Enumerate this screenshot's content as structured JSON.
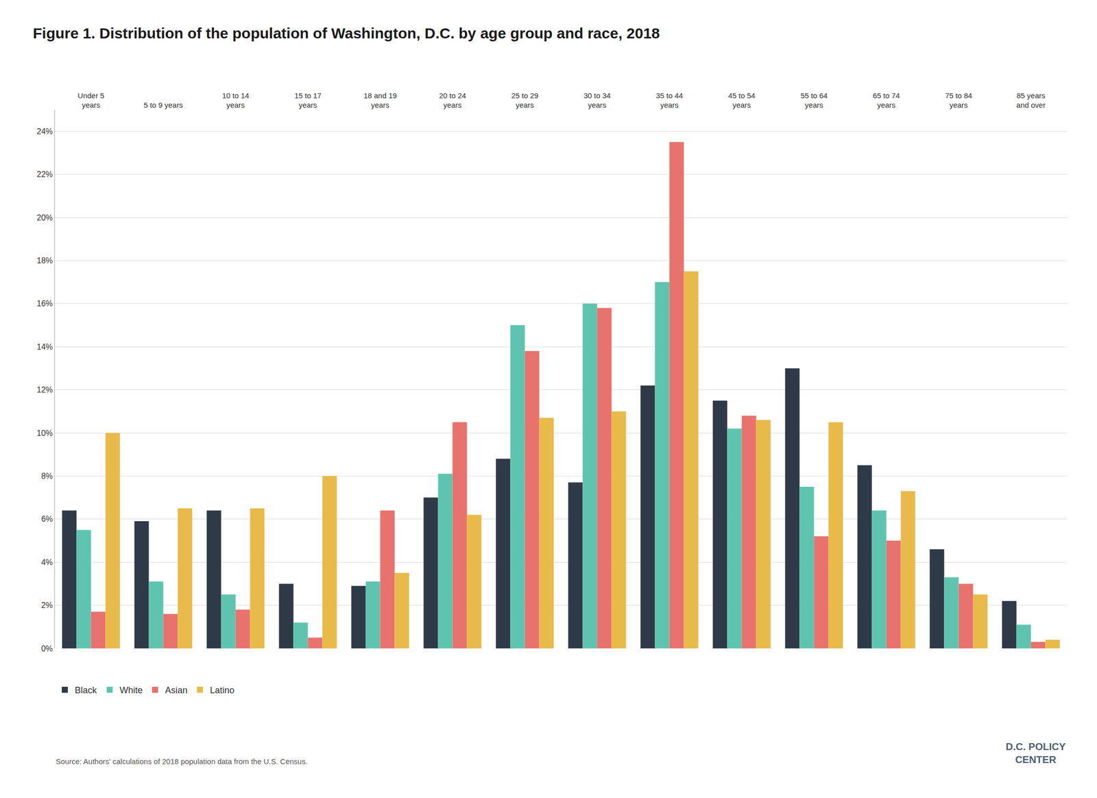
{
  "chart_data": {
    "type": "bar",
    "title": "Figure 1. Distribution of the population of Washington, D.C. by age group and race, 2018",
    "categories": [
      "Under 5\nyears",
      "5 to 9 years",
      "10 to 14\nyears",
      "15 to 17\nyears",
      "18 and 19\nyears",
      "20 to 24\nyears",
      "25 to 29\nyears",
      "30 to 34\nyears",
      "35 to 44\nyears",
      "45 to 54\nyears",
      "55 to 64\nyears",
      "65 to 74\nyears",
      "75 to 84\nyears",
      "85 years\nand over"
    ],
    "series": [
      {
        "name": "Black",
        "color": "#2e3a47",
        "values": [
          6.4,
          5.9,
          6.4,
          3.0,
          2.9,
          7.0,
          8.8,
          7.7,
          12.2,
          11.5,
          13.0,
          8.5,
          4.6,
          2.2
        ]
      },
      {
        "name": "White",
        "color": "#5ec4b0",
        "values": [
          5.5,
          3.1,
          2.5,
          1.2,
          3.1,
          8.1,
          15.0,
          16.0,
          17.0,
          10.2,
          7.5,
          6.4,
          3.3,
          1.1
        ]
      },
      {
        "name": "Asian",
        "color": "#e8726d",
        "values": [
          1.7,
          1.6,
          1.8,
          0.5,
          6.4,
          10.5,
          13.8,
          15.8,
          23.5,
          10.8,
          5.2,
          5.0,
          3.0,
          0.3
        ]
      },
      {
        "name": "Latino",
        "color": "#e8ba4a",
        "values": [
          10.0,
          6.5,
          6.5,
          8.0,
          3.5,
          6.2,
          10.7,
          11.0,
          17.5,
          10.6,
          10.5,
          7.3,
          2.5,
          0.4
        ]
      }
    ],
    "ylim": [
      0,
      25
    ],
    "yticks": [
      {
        "value": 0,
        "label": "0%"
      },
      {
        "value": 2,
        "label": "2%"
      },
      {
        "value": 4,
        "label": "4%"
      },
      {
        "value": 6,
        "label": "6%"
      },
      {
        "value": 8,
        "label": "8%"
      },
      {
        "value": 10,
        "label": "10%"
      },
      {
        "value": 12,
        "label": "12%"
      },
      {
        "value": 14,
        "label": "14%"
      },
      {
        "value": 16,
        "label": "16%"
      },
      {
        "value": 18,
        "label": "18%"
      },
      {
        "value": 20,
        "label": "20%"
      },
      {
        "value": 22,
        "label": "22%"
      },
      {
        "value": 24,
        "label": "24%"
      }
    ],
    "grid": true,
    "legend": "bottom",
    "annotations": [
      "Source: Authors' calculations of 2018 population data from the U.S. Census.",
      "D.C. POLICY\nCENTER"
    ]
  }
}
